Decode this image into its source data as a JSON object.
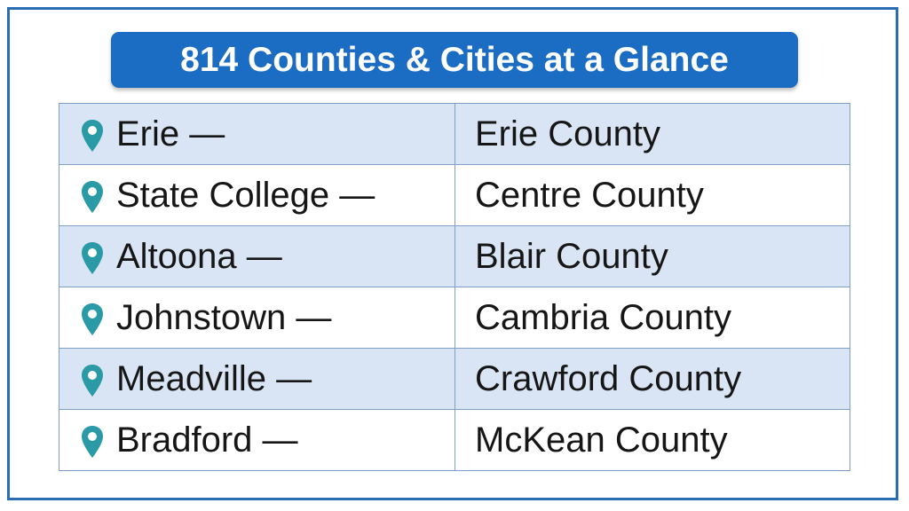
{
  "header": {
    "title": "814 Counties & Cities at a Glance"
  },
  "table": {
    "rows": [
      [
        "Erie —",
        "Erie County"
      ],
      [
        "State College —",
        "Centre County"
      ],
      [
        "Altoona —",
        "Blair County"
      ],
      [
        "Johnstown —",
        "Cambria County"
      ],
      [
        "Meadville —",
        "Crawford County"
      ],
      [
        "Bradford —",
        "McKean County"
      ]
    ]
  }
}
